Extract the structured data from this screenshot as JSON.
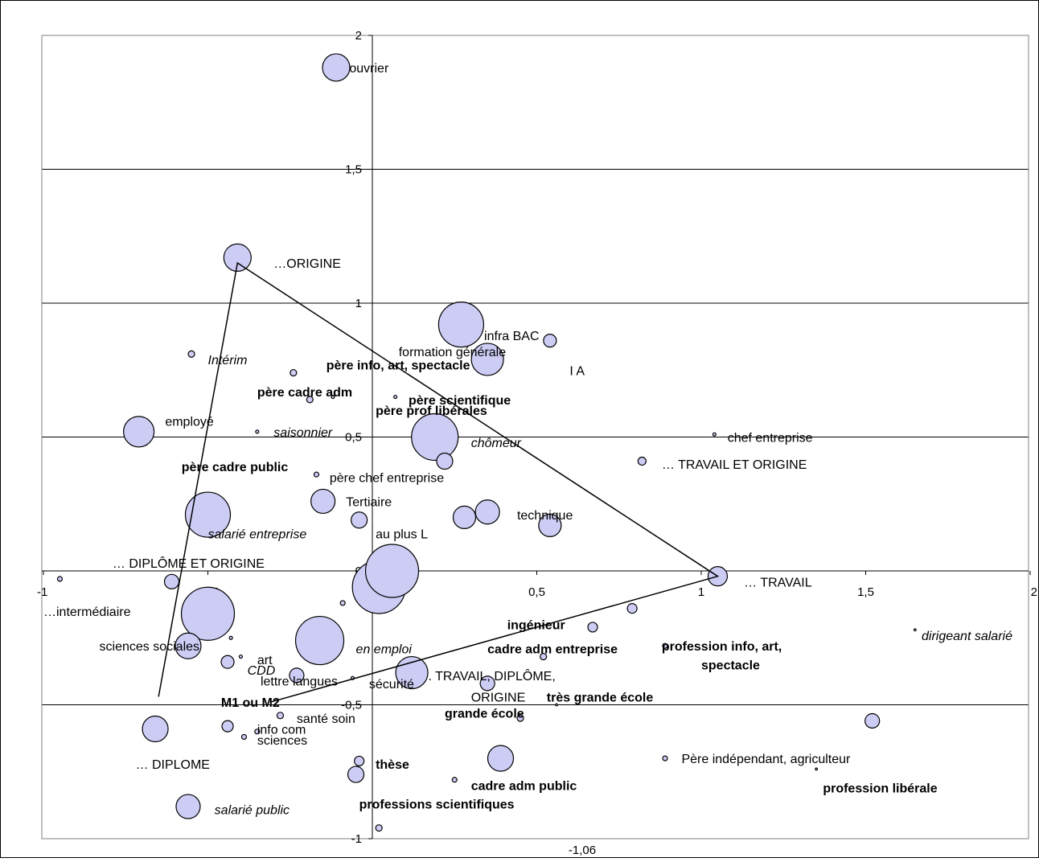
{
  "chart_data": {
    "type": "scatter",
    "title": "",
    "xlabel": "",
    "ylabel": "",
    "xlim": [
      -1,
      2
    ],
    "ylim": [
      -1,
      2
    ],
    "x_ticks": [
      {
        "value": -1,
        "label": "-1"
      },
      {
        "value": -0.5,
        "label": "-0,5"
      },
      {
        "value": 0,
        "label": "0"
      },
      {
        "value": 0.5,
        "label": "0,5"
      },
      {
        "value": 1,
        "label": "1"
      },
      {
        "value": 1.5,
        "label": "1,5"
      },
      {
        "value": 2,
        "label": "2"
      }
    ],
    "y_ticks": [
      {
        "value": 2,
        "label": "2"
      },
      {
        "value": 1.5,
        "label": "1,5"
      },
      {
        "value": 1,
        "label": "1"
      },
      {
        "value": 0.5,
        "label": "0,5"
      },
      {
        "value": 0,
        "label": "0"
      },
      {
        "value": -0.5,
        "label": "-0,5"
      },
      {
        "value": -1,
        "label": "-1"
      }
    ],
    "axis_note": "-1,06",
    "grid": true,
    "bubble_color": "#ccccf5",
    "points": [
      {
        "x": -0.11,
        "y": 1.88,
        "r": 17
      },
      {
        "x": -0.41,
        "y": 1.17,
        "r": 17
      },
      {
        "x": 0.27,
        "y": 0.92,
        "r": 28
      },
      {
        "x": 0.35,
        "y": 0.79,
        "r": 20
      },
      {
        "x": 0.54,
        "y": 0.86,
        "r": 8
      },
      {
        "x": -0.55,
        "y": 0.81,
        "r": 4
      },
      {
        "x": -0.24,
        "y": 0.74,
        "r": 4
      },
      {
        "x": -0.19,
        "y": 0.64,
        "r": 4
      },
      {
        "x": -0.12,
        "y": 0.65,
        "r": 2
      },
      {
        "x": 0.07,
        "y": 0.65,
        "r": 2
      },
      {
        "x": -0.71,
        "y": 0.52,
        "r": 19
      },
      {
        "x": -0.35,
        "y": 0.52,
        "r": 2
      },
      {
        "x": 0.19,
        "y": 0.5,
        "r": 29
      },
      {
        "x": 1.04,
        "y": 0.51,
        "r": 2
      },
      {
        "x": 0.22,
        "y": 0.41,
        "r": 10
      },
      {
        "x": 0.82,
        "y": 0.41,
        "r": 5
      },
      {
        "x": -0.17,
        "y": 0.36,
        "r": 3
      },
      {
        "x": -0.15,
        "y": 0.26,
        "r": 15
      },
      {
        "x": -0.5,
        "y": 0.21,
        "r": 28
      },
      {
        "x": -0.04,
        "y": 0.19,
        "r": 10
      },
      {
        "x": 0.28,
        "y": 0.2,
        "r": 14
      },
      {
        "x": 0.35,
        "y": 0.22,
        "r": 15
      },
      {
        "x": 0.54,
        "y": 0.17,
        "r": 14
      },
      {
        "x": -0.61,
        "y": -0.04,
        "r": 9
      },
      {
        "x": -0.95,
        "y": -0.03,
        "r": 3
      },
      {
        "x": 0.02,
        "y": -0.06,
        "r": 33
      },
      {
        "x": 0.06,
        "y": 0.0,
        "r": 33
      },
      {
        "x": 1.05,
        "y": -0.02,
        "r": 12
      },
      {
        "x": -0.09,
        "y": -0.12,
        "r": 3
      },
      {
        "x": -0.5,
        "y": -0.16,
        "r": 33
      },
      {
        "x": 0.79,
        "y": -0.14,
        "r": 6
      },
      {
        "x": 0.67,
        "y": -0.21,
        "r": 6
      },
      {
        "x": 1.65,
        "y": -0.22,
        "r": 1
      },
      {
        "x": -0.16,
        "y": -0.26,
        "r": 30
      },
      {
        "x": -0.43,
        "y": -0.25,
        "r": 2
      },
      {
        "x": -0.56,
        "y": -0.28,
        "r": 16
      },
      {
        "x": 0.89,
        "y": -0.28,
        "r": 3
      },
      {
        "x": 0.52,
        "y": -0.32,
        "r": 4
      },
      {
        "x": -0.4,
        "y": -0.32,
        "r": 2
      },
      {
        "x": -0.44,
        "y": -0.34,
        "r": 8
      },
      {
        "x": 0.12,
        "y": -0.38,
        "r": 20
      },
      {
        "x": -0.23,
        "y": -0.39,
        "r": 9
      },
      {
        "x": -0.06,
        "y": -0.4,
        "r": 2
      },
      {
        "x": 0.35,
        "y": -0.42,
        "r": 9
      },
      {
        "x": 0.56,
        "y": -0.5,
        "r": 1
      },
      {
        "x": -0.28,
        "y": -0.54,
        "r": 4
      },
      {
        "x": 0.45,
        "y": -0.55,
        "r": 4
      },
      {
        "x": 1.52,
        "y": -0.56,
        "r": 9
      },
      {
        "x": -0.66,
        "y": -0.59,
        "r": 16
      },
      {
        "x": -0.44,
        "y": -0.58,
        "r": 7
      },
      {
        "x": -0.35,
        "y": -0.6,
        "r": 3
      },
      {
        "x": -0.39,
        "y": -0.62,
        "r": 3
      },
      {
        "x": -0.04,
        "y": -0.71,
        "r": 6
      },
      {
        "x": 0.39,
        "y": -0.7,
        "r": 16
      },
      {
        "x": 0.89,
        "y": -0.7,
        "r": 3
      },
      {
        "x": -0.05,
        "y": -0.76,
        "r": 10
      },
      {
        "x": 1.35,
        "y": -0.74,
        "r": 1
      },
      {
        "x": 0.25,
        "y": -0.78,
        "r": 3
      },
      {
        "x": -0.56,
        "y": -0.88,
        "r": 15
      },
      {
        "x": 0.02,
        "y": -0.96,
        "r": 4
      }
    ],
    "labels": [
      {
        "text": "ouvrier",
        "x": -0.07,
        "y": 1.88,
        "style": "normal"
      },
      {
        "text": "…ORIGINE",
        "x": -0.3,
        "y": 1.15,
        "style": "normal"
      },
      {
        "text": "infra BAC",
        "x": 0.34,
        "y": 0.88,
        "style": "normal"
      },
      {
        "text": "formation générale",
        "x": 0.08,
        "y": 0.82,
        "style": "normal"
      },
      {
        "text": "I A",
        "x": 0.6,
        "y": 0.75,
        "style": "normal"
      },
      {
        "text": "Intérim",
        "x": -0.5,
        "y": 0.79,
        "style": "italic"
      },
      {
        "text": "père info, art, spectacle",
        "x": -0.14,
        "y": 0.77,
        "style": "bold"
      },
      {
        "text": "père cadre adm",
        "x": -0.35,
        "y": 0.67,
        "style": "bold"
      },
      {
        "text": "père scientifique",
        "x": 0.11,
        "y": 0.64,
        "style": "bold"
      },
      {
        "text": "père prof libérales",
        "x": 0.01,
        "y": 0.6,
        "style": "bold"
      },
      {
        "text": "employé",
        "x": -0.63,
        "y": 0.56,
        "style": "normal"
      },
      {
        "text": "saisonnier",
        "x": -0.3,
        "y": 0.52,
        "style": "italic"
      },
      {
        "text": "chômeur",
        "x": 0.3,
        "y": 0.48,
        "style": "italic"
      },
      {
        "text": "chef entreprise",
        "x": 1.08,
        "y": 0.5,
        "style": "normal"
      },
      {
        "text": "… TRAVAIL ET ORIGINE",
        "x": 0.88,
        "y": 0.4,
        "style": "normal"
      },
      {
        "text": "père cadre public",
        "x": -0.58,
        "y": 0.39,
        "style": "bold"
      },
      {
        "text": "père chef entreprise",
        "x": -0.13,
        "y": 0.35,
        "style": "normal"
      },
      {
        "text": "Tertiaire",
        "x": -0.08,
        "y": 0.26,
        "style": "normal"
      },
      {
        "text": "technique",
        "x": 0.44,
        "y": 0.21,
        "style": "normal"
      },
      {
        "text": "salarié entreprise",
        "x": -0.5,
        "y": 0.14,
        "style": "italic"
      },
      {
        "text": "au plus L",
        "x": 0.01,
        "y": 0.14,
        "style": "normal"
      },
      {
        "text": "… DIPLÔME ET ORIGINE",
        "x": -0.79,
        "y": 0.03,
        "style": "normal"
      },
      {
        "text": "… TRAVAIL",
        "x": 1.13,
        "y": -0.04,
        "style": "normal"
      },
      {
        "text": "…intermédiaire",
        "x": -1.0,
        "y": -0.15,
        "style": "normal"
      },
      {
        "text": "ingénieur",
        "x": 0.41,
        "y": -0.2,
        "style": "bold"
      },
      {
        "text": "dirigeant salarié",
        "x": 1.67,
        "y": -0.24,
        "style": "italic"
      },
      {
        "text": "sciences sociales",
        "x": -0.83,
        "y": -0.28,
        "style": "normal"
      },
      {
        "text": "profession info, art,",
        "x": 0.88,
        "y": -0.28,
        "style": "bold"
      },
      {
        "text": "cadre adm entreprise",
        "x": 0.35,
        "y": -0.29,
        "style": "bold"
      },
      {
        "text": "en emploi",
        "x": -0.05,
        "y": -0.29,
        "style": "italic"
      },
      {
        "text": "art",
        "x": -0.35,
        "y": -0.33,
        "style": "normal"
      },
      {
        "text": "CDD",
        "x": -0.38,
        "y": -0.37,
        "style": "italic"
      },
      {
        "text": "spectacle",
        "x": 1.0,
        "y": -0.35,
        "style": "bold"
      },
      {
        "text": ". TRAVAIL, DIPLÔME,",
        "x": 0.17,
        "y": -0.39,
        "style": "normal"
      },
      {
        "text": "lettre langues",
        "x": -0.34,
        "y": -0.41,
        "style": "normal"
      },
      {
        "text": "sécurité",
        "x": -0.01,
        "y": -0.42,
        "style": "normal"
      },
      {
        "text": "ORIGINE",
        "x": 0.3,
        "y": -0.47,
        "style": "normal"
      },
      {
        "text": "très grande école",
        "x": 0.53,
        "y": -0.47,
        "style": "bold"
      },
      {
        "text": "M1 ou M2",
        "x": -0.46,
        "y": -0.49,
        "style": "bold"
      },
      {
        "text": "grande école",
        "x": 0.22,
        "y": -0.53,
        "style": "bold"
      },
      {
        "text": "santé soin",
        "x": -0.23,
        "y": -0.55,
        "style": "normal"
      },
      {
        "text": "info com",
        "x": -0.35,
        "y": -0.59,
        "style": "normal"
      },
      {
        "text": "sciences",
        "x": -0.35,
        "y": -0.63,
        "style": "normal"
      },
      {
        "text": "Père indépendant, agriculteur",
        "x": 0.94,
        "y": -0.7,
        "style": "normal"
      },
      {
        "text": "… DIPLOME",
        "x": -0.72,
        "y": -0.72,
        "style": "normal"
      },
      {
        "text": "thèse",
        "x": 0.01,
        "y": -0.72,
        "style": "bold"
      },
      {
        "text": "cadre adm public",
        "x": 0.3,
        "y": -0.8,
        "style": "bold"
      },
      {
        "text": "profession libérale",
        "x": 1.37,
        "y": -0.81,
        "style": "bold"
      },
      {
        "text": "salarié public",
        "x": -0.48,
        "y": -0.89,
        "style": "italic"
      },
      {
        "text": "professions scientifiques",
        "x": -0.04,
        "y": -0.87,
        "style": "bold"
      }
    ],
    "triangle": [
      {
        "x": -0.65,
        "y": -0.47
      },
      {
        "x": -0.41,
        "y": 1.15
      },
      {
        "x": 1.05,
        "y": -0.02
      },
      {
        "x": -0.31,
        "y": -0.49
      }
    ]
  }
}
